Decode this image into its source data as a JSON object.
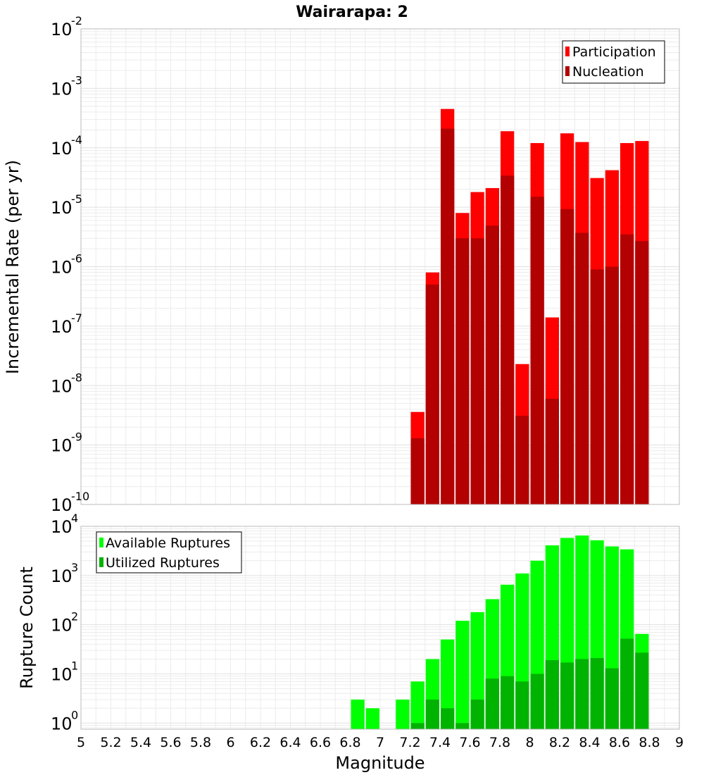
{
  "chart_data": [
    {
      "type": "bar",
      "title": "Wairarapa: 2",
      "xlabel": "",
      "ylabel": "Incremental Rate (per yr)",
      "y_scale": "log",
      "ylim": [
        1e-10,
        0.01
      ],
      "xlim": [
        5,
        9
      ],
      "grid": true,
      "legend_position": "top-right",
      "y_tick_exponents": [
        "-2",
        "-3",
        "-4",
        "-5",
        "-6",
        "-7",
        "-8",
        "-9",
        "-10"
      ],
      "x": [
        7.25,
        7.35,
        7.45,
        7.55,
        7.65,
        7.75,
        7.85,
        7.95,
        8.05,
        8.15,
        8.25,
        8.35,
        8.45,
        8.55,
        8.65,
        8.75
      ],
      "series": [
        {
          "name": "Participation",
          "color": "#ff0000",
          "values": [
            3.6e-09,
            8e-07,
            0.00045,
            8e-06,
            1.8e-05,
            2.1e-05,
            0.00019,
            2.3e-08,
            0.00012,
            1.4e-07,
            0.000175,
            0.000125,
            3.1e-05,
            4.2e-05,
            0.00012,
            0.00013
          ]
        },
        {
          "name": "Nucleation",
          "color": "#b30000",
          "values": [
            1.3e-09,
            5e-07,
            0.00021,
            3e-06,
            3e-06,
            4.9e-06,
            3.4e-05,
            3.1e-09,
            1.5e-05,
            6e-09,
            9.3e-06,
            3.7e-06,
            9e-07,
            1e-06,
            3.5e-06,
            2.7e-06
          ]
        }
      ]
    },
    {
      "type": "bar",
      "title": "",
      "xlabel": "Magnitude",
      "ylabel": "Rupture Count",
      "y_scale": "log",
      "ylim": [
        0.75,
        10000
      ],
      "xlim": [
        5,
        9
      ],
      "grid": true,
      "legend_position": "top-left",
      "y_tick_exponents": [
        "4",
        "3",
        "2",
        "1",
        "0"
      ],
      "x_tick_labels": [
        "5",
        "5.2",
        "5.4",
        "5.6",
        "5.8",
        "6",
        "6.2",
        "6.4",
        "6.6",
        "6.8",
        "7",
        "7.2",
        "7.4",
        "7.6",
        "7.8",
        "8",
        "8.2",
        "8.4",
        "8.6",
        "8.8",
        "9"
      ],
      "x": [
        6.85,
        6.95,
        7.15,
        7.25,
        7.35,
        7.45,
        7.55,
        7.65,
        7.75,
        7.85,
        7.95,
        8.05,
        8.15,
        8.25,
        8.35,
        8.45,
        8.55,
        8.65,
        8.75
      ],
      "series": [
        {
          "name": "Available Ruptures",
          "color": "#00ff00",
          "values": [
            3,
            2,
            3,
            7,
            20,
            50,
            120,
            180,
            330,
            650,
            1100,
            2000,
            4100,
            5800,
            6500,
            5200,
            3900,
            3400,
            65
          ]
        },
        {
          "name": "Utilized Ruptures",
          "color": "#00b300",
          "values": [
            0,
            0,
            0,
            1,
            3,
            2,
            1,
            3,
            8,
            9,
            7,
            10,
            19,
            17,
            20,
            21,
            13,
            52,
            27
          ]
        }
      ]
    }
  ],
  "base_label": "10"
}
